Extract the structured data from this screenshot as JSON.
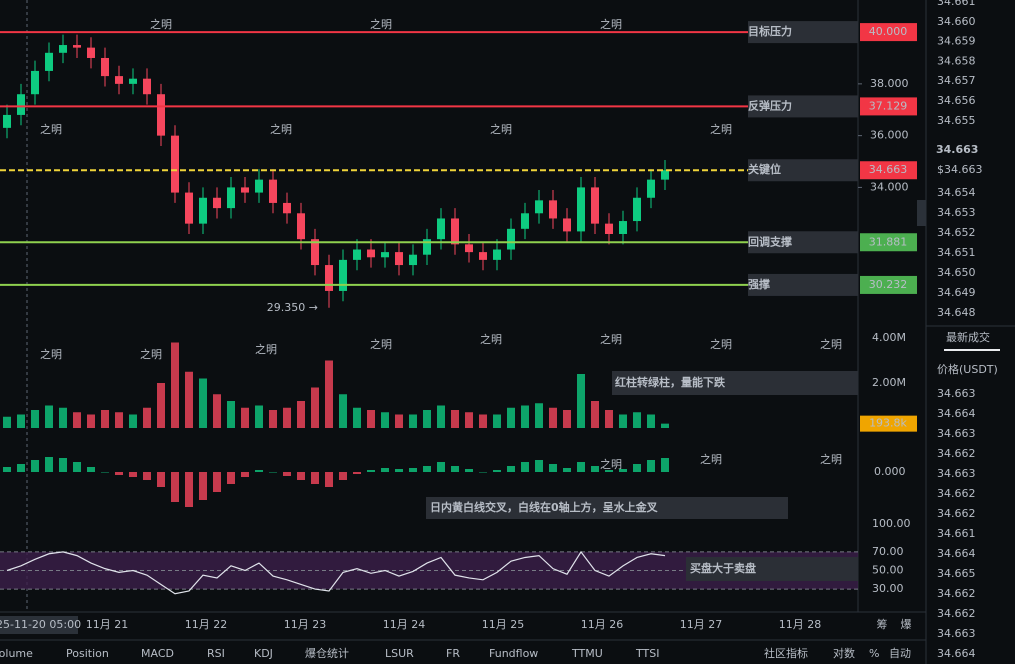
{
  "watermark": "之明",
  "chart": {
    "ylim": [
      28.8,
      41.24
    ],
    "price_ticks": [
      {
        "value": 38,
        "label": "38.000"
      },
      {
        "value": 36,
        "label": "36.000"
      },
      {
        "value": 34,
        "label": "34.000"
      }
    ],
    "levels": [
      {
        "name": "目标压力",
        "price": {
          "value": 40,
          "label": "40.000"
        },
        "color": "#f23645",
        "box_color": "#f23645",
        "dashed": false
      },
      {
        "name": "反弹压力",
        "price": {
          "value": 37.129,
          "label": "37.129"
        },
        "color": "#f23645",
        "box_color": "#f23645",
        "dashed": false
      },
      {
        "name": "关键位",
        "price": {
          "value": 34.663,
          "label": "34.663"
        },
        "color": "#f0d43a",
        "box_color": "#f23645",
        "dashed": true
      },
      {
        "name": "回调支撑",
        "price": {
          "value": 31.881,
          "label": "31.881"
        },
        "color": "#8fd14f",
        "box_color": "#4caf50",
        "dashed": false
      },
      {
        "name": "强撑",
        "price": {
          "value": 30.232,
          "label": "30.232"
        },
        "color": "#8fd14f",
        "box_color": "#4caf50",
        "dashed": false
      }
    ],
    "low_annotation": {
      "value": 29.35,
      "label": "29.350 →"
    },
    "candles": {
      "open": [
        36.3,
        36.8,
        37.6,
        38.5,
        39.2,
        39.5,
        39.4,
        39.0,
        38.3,
        38.0,
        38.2,
        37.6,
        36.0,
        33.8,
        32.6,
        33.6,
        33.2,
        34.0,
        33.8,
        34.3,
        33.4,
        33.0,
        32.0,
        31.0,
        30.0,
        31.2,
        31.6,
        31.3,
        31.5,
        31.0,
        31.4,
        32.0,
        32.8,
        31.8,
        31.5,
        31.2,
        31.6,
        32.4,
        33.0,
        33.5,
        32.8,
        32.3,
        34.0,
        32.6,
        32.2,
        32.7,
        33.6,
        34.3
      ],
      "high": [
        37.2,
        38.0,
        38.9,
        39.6,
        39.9,
        39.9,
        39.8,
        39.4,
        38.7,
        38.6,
        38.6,
        38.0,
        36.4,
        34.2,
        34.0,
        34.0,
        34.4,
        34.4,
        34.7,
        34.7,
        33.8,
        33.4,
        32.4,
        31.4,
        31.6,
        32.0,
        32.0,
        31.9,
        31.9,
        31.8,
        32.4,
        33.2,
        33.2,
        32.2,
        31.9,
        32.0,
        32.8,
        33.4,
        33.9,
        33.9,
        33.2,
        34.4,
        34.4,
        33.0,
        33.1,
        34.0,
        34.7,
        35.06
      ],
      "low": [
        35.9,
        36.4,
        37.2,
        38.1,
        38.8,
        39.0,
        38.6,
        37.9,
        37.6,
        37.6,
        37.2,
        35.6,
        33.4,
        32.2,
        32.2,
        32.8,
        32.8,
        33.4,
        33.4,
        33.0,
        32.6,
        31.6,
        30.6,
        29.35,
        29.6,
        30.8,
        30.9,
        30.9,
        30.6,
        30.6,
        31.0,
        31.6,
        31.4,
        31.1,
        30.8,
        30.8,
        31.2,
        32.0,
        32.6,
        32.4,
        31.9,
        31.9,
        32.2,
        31.8,
        31.8,
        32.3,
        33.2,
        33.9
      ],
      "close": [
        36.8,
        37.6,
        38.5,
        39.2,
        39.5,
        39.4,
        39.0,
        38.3,
        38.0,
        38.2,
        37.6,
        36.0,
        33.8,
        32.6,
        33.6,
        33.2,
        34.0,
        33.8,
        34.3,
        33.4,
        33.0,
        32.0,
        31.0,
        30.0,
        31.2,
        31.6,
        31.3,
        31.5,
        31.0,
        31.4,
        32.0,
        32.8,
        31.8,
        31.5,
        31.2,
        31.6,
        32.4,
        33.0,
        33.5,
        32.8,
        32.3,
        34.0,
        32.6,
        32.2,
        32.7,
        33.6,
        34.3,
        34.663
      ]
    },
    "time_labels": [
      "25-11-20 05:00",
      "11月 21",
      "11月 22",
      "11月 23",
      "11月 24",
      "11月 25",
      "11月 26",
      "11月 27",
      "11月 28"
    ],
    "volume": {
      "ylim": [
        0,
        4.8
      ],
      "ticks": [
        {
          "value": 4,
          "label": "4.00M"
        },
        {
          "value": 2,
          "label": "2.00M"
        }
      ],
      "values": [
        0.5,
        0.6,
        0.8,
        1.0,
        0.9,
        0.7,
        0.6,
        0.8,
        0.7,
        0.6,
        0.9,
        2.0,
        3.8,
        2.5,
        2.2,
        1.5,
        1.2,
        0.9,
        1.0,
        0.8,
        0.9,
        1.2,
        1.8,
        3.0,
        1.5,
        0.9,
        0.8,
        0.7,
        0.6,
        0.6,
        0.8,
        1.0,
        0.8,
        0.7,
        0.6,
        0.6,
        0.9,
        1.0,
        1.1,
        0.9,
        0.8,
        2.4,
        1.2,
        0.8,
        0.6,
        0.7,
        0.6,
        0.1938
      ],
      "last_label": "193.8k",
      "note": "红柱转绿柱，量能下跌"
    },
    "macd": {
      "ylim": [
        -0.4,
        0.4
      ],
      "ticks": [
        {
          "value": 0,
          "label": "0.000"
        }
      ],
      "values": [
        0.05,
        0.08,
        0.12,
        0.15,
        0.14,
        0.1,
        0.05,
        0,
        -0.03,
        -0.05,
        -0.08,
        -0.15,
        -0.3,
        -0.35,
        -0.28,
        -0.2,
        -0.12,
        -0.05,
        0.02,
        0,
        -0.04,
        -0.08,
        -0.12,
        -0.15,
        -0.08,
        -0.02,
        0.02,
        0.04,
        0.03,
        0.04,
        0.06,
        0.1,
        0.06,
        0.03,
        0,
        0.02,
        0.06,
        0.1,
        0.12,
        0.08,
        0.04,
        0.1,
        0.06,
        0.02,
        0.03,
        0.08,
        0.12,
        0.14
      ],
      "note": "日内黄白线交叉，白线在0轴上方，呈水上金叉"
    },
    "rsi": {
      "ylim": [
        0,
        100
      ],
      "ticks": [
        {
          "value": 100,
          "label": "100.00"
        },
        {
          "value": 70,
          "label": "70.00"
        },
        {
          "value": 50,
          "label": "50.00"
        },
        {
          "value": 30,
          "label": "30.00"
        }
      ],
      "values": [
        50,
        55,
        62,
        68,
        70,
        66,
        58,
        52,
        48,
        50,
        45,
        35,
        25,
        28,
        45,
        42,
        55,
        50,
        58,
        44,
        40,
        35,
        30,
        28,
        48,
        52,
        47,
        50,
        44,
        49,
        58,
        64,
        45,
        42,
        40,
        48,
        60,
        64,
        66,
        52,
        46,
        70,
        50,
        44,
        55,
        64,
        68,
        66
      ],
      "note": "买盘大于卖盘"
    }
  },
  "corner_labels": [
    "筹",
    "爆"
  ],
  "toolbar": {
    "tabs": [
      {
        "label": "Volume",
        "active": false
      },
      {
        "label": "Position",
        "active": false
      },
      {
        "label": "MACD",
        "active": true
      },
      {
        "label": "RSI",
        "active": true
      },
      {
        "label": "KDJ",
        "active": false
      },
      {
        "label": "爆仓统计",
        "active": false
      },
      {
        "label": "LSUR",
        "active": false
      },
      {
        "label": "FR",
        "active": false
      },
      {
        "label": "Fundflow",
        "active": false
      },
      {
        "label": "TTMU",
        "active": false
      },
      {
        "label": "TTSI",
        "active": false
      }
    ],
    "right": [
      "社区指标",
      "对数",
      "%",
      "自动"
    ]
  },
  "orderbook": {
    "asks": [
      "34.661",
      "34.660",
      "34.659",
      "34.658",
      "34.657",
      "34.656",
      "34.655"
    ],
    "last_price": "34.663",
    "last_price_usd": "$34.663",
    "bids": [
      "34.654",
      "34.653",
      "34.652",
      "34.651",
      "34.650",
      "34.649",
      "34.648"
    ]
  },
  "trades": {
    "title": "最新成交",
    "column": "价格(USDT)",
    "rows": [
      {
        "price": "34.663",
        "side": "sell"
      },
      {
        "price": "34.664",
        "side": "buy"
      },
      {
        "price": "34.663",
        "side": "buy"
      },
      {
        "price": "34.662",
        "side": "sell"
      },
      {
        "price": "34.663",
        "side": "buy"
      },
      {
        "price": "34.662",
        "side": "sell"
      },
      {
        "price": "34.662",
        "side": "sell"
      },
      {
        "price": "34.661",
        "side": "sell"
      },
      {
        "price": "34.664",
        "side": "buy"
      },
      {
        "price": "34.665",
        "side": "buy"
      },
      {
        "price": "34.662",
        "side": "sell"
      },
      {
        "price": "34.662",
        "side": "sell"
      },
      {
        "price": "34.663",
        "side": "buy"
      },
      {
        "price": "34.664",
        "side": "buy"
      }
    ]
  }
}
